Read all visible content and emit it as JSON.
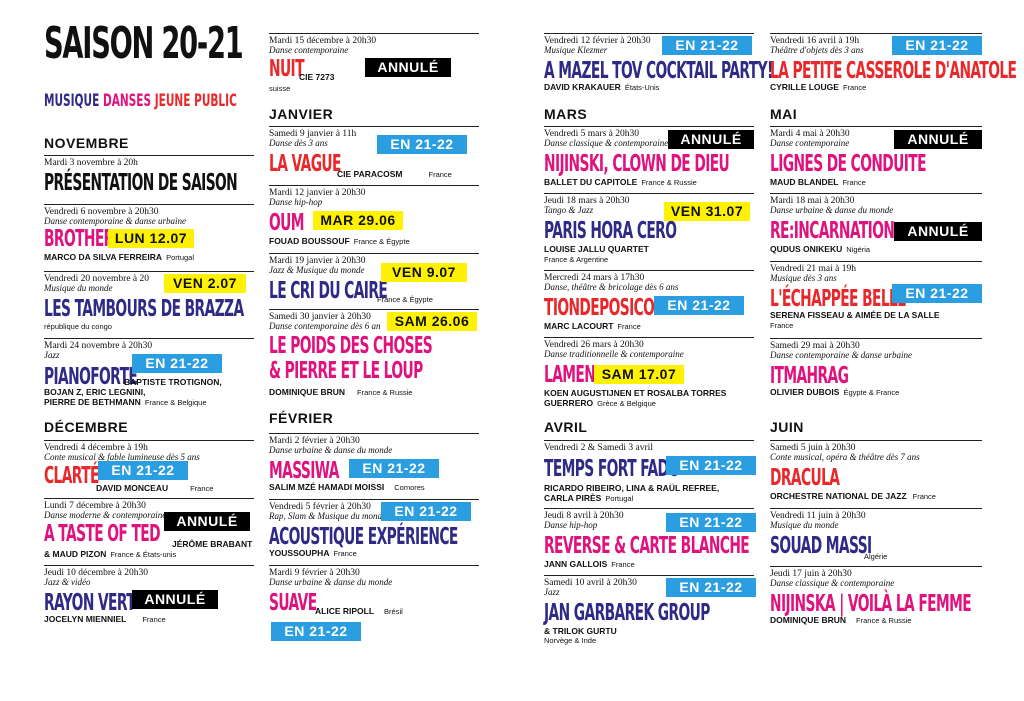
{
  "header": {
    "title": "SAISON 20-21",
    "cat_musique": "MUSIQUE",
    "cat_danses": "DANSES",
    "cat_jeune": "JEUNE PUBLIC"
  },
  "months": {
    "novembre": "NOVEMBRE",
    "decembre": "DÉCEMBRE",
    "janvier": "JANVIER",
    "fevrier": "FÉVRIER",
    "mars": "MARS",
    "avril": "AVRIL",
    "mai": "MAI",
    "juin": "JUIN"
  },
  "events": [
    {
      "date": "Mardi 3 novembre à 20h",
      "genre": "",
      "title": "PRÉSENTATION DE SAISON",
      "title2": "",
      "artist": "",
      "country": "",
      "sub": "",
      "tag": ""
    },
    {
      "date": "Vendredi 6 novembre à 20h30",
      "genre": "Danse contemporaine & danse urbaine",
      "title": "BROTHER",
      "title2": "",
      "artist": "MARCO DA SILVA FERREIRA",
      "country": "Portugal",
      "sub": "",
      "tag": "LUN 12.07"
    },
    {
      "date": "Vendredi 20 novembre à 20",
      "genre": "Musique du monde",
      "title": "LES TAMBOURS DE BRAZZA",
      "title2": "",
      "artist": "",
      "country": "",
      "sub": "république du congo",
      "tag": "VEN 2.07"
    },
    {
      "date": "Mardi 24 novembre à 20h30",
      "genre": "Jazz",
      "title": "PIANOFORTE",
      "title2": "",
      "artist": "BAPTISTE TROTIGNON,",
      "country": "",
      "sub": "",
      "tag": "EN 21-22",
      "artist2": "BOJAN Z, ERIC LEGNINI,",
      "artist3": "PIERRE DE BETHMANN",
      "country3": "France & Belgique"
    },
    {
      "date": "Vendredi 4 décembre à 19h",
      "genre": "Conte musical & fable lumineuse dès 5 ans",
      "title": "CLARTÉ",
      "title2": "",
      "artist": "DAVID MONCEAU",
      "country": "France",
      "sub": "",
      "tag": "EN 21-22"
    },
    {
      "date": "Lundi 7 décembre à 20h30",
      "genre": "Danse moderne & contemporaine",
      "title": "A TASTE OF TED",
      "title2": "",
      "artist": "JÉRÔME BRABANT",
      "country": "",
      "sub": "",
      "tag": "ANNULÉ",
      "artist2": "& MAUD PIZON",
      "country2": "France & États-unis"
    },
    {
      "date": "Jeudi 10 décembre à 20h30",
      "genre": "Jazz & vidéo",
      "title": "RAYON VERT",
      "title2": "",
      "artist": "JOCELYN MIENNIEL",
      "country": "France",
      "sub": "",
      "tag": "ANNULÉ"
    },
    {
      "date": "Mardi 15 décembre à 20h30",
      "genre": "Danse contemporaine",
      "title": "NUIT",
      "title2": "",
      "artist": "CIE 7273",
      "country": "",
      "sub": "suisse",
      "tag": "ANNULÉ"
    },
    {
      "date": "Samedi 9 janvier à 11h",
      "genre": "Danse dès 3 ans",
      "title": "LA VAGUE",
      "title2": "",
      "artist": "CIE PARACOSM",
      "country": "France",
      "sub": "",
      "tag": "EN 21-22"
    },
    {
      "date": "Mardi 12 janvier à 20h30",
      "genre": "Danse hip-hop",
      "title": "OUM",
      "title2": "",
      "artist": "FOUAD BOUSSOUF",
      "country": "France & Égypte",
      "sub": "",
      "tag": "MAR 29.06"
    },
    {
      "date": "Mardi 19 janvier à 20h30",
      "genre": "Jazz & Musique du monde",
      "title": "LE CRI DU CAIRE",
      "title2": "",
      "artist": "",
      "country": "France & Égypte",
      "sub": "",
      "tag": "VEN 9.07"
    },
    {
      "date": "Samedi 30 janvier à 20h30",
      "genre": "Danse contemporaine dès 6 an",
      "title": "LE POIDS DES CHOSES",
      "title2": "& PIERRE ET LE LOUP",
      "artist": "DOMINIQUE BRUN",
      "country": "France & Russie",
      "sub": "",
      "tag": "SAM 26.06"
    },
    {
      "date": "Mardi 2 février à 20h30",
      "genre": "Danse urbaine & danse du monde",
      "title": "MASSIWA",
      "title2": "",
      "artist": "SALIM MZÉ HAMADI MOISSI",
      "country": "Comores",
      "sub": "",
      "tag": "EN 21-22"
    },
    {
      "date": "Vendredi 5 février à 20h30",
      "genre": "Rap, Slam & Musique du monde",
      "title": "ACOUSTIQUE EXPÉRIENCE",
      "title2": "",
      "artist": "YOUSSOUPHA",
      "country": "France",
      "sub": "",
      "tag": "EN 21-22"
    },
    {
      "date": "Mardi 9 février à 20h30",
      "genre": "Danse urbaine & danse du monde",
      "title": "SUAVE",
      "title2": "",
      "artist": "ALICE RIPOLL",
      "country": "Brésil",
      "sub": "",
      "tag": "EN 21-22"
    },
    {
      "date": "Vendredi 12 février à 20h30",
      "genre": "Musique Klezmer",
      "title": "A MAZEL TOV COCKTAIL PARTY!",
      "title2": "",
      "artist": "DAVID KRAKAUER",
      "country": "États-Unis",
      "sub": "",
      "tag": "EN 21-22"
    },
    {
      "date": "Vendredi 5 mars à 20h30",
      "genre": "Danse classique & contemporaine",
      "title": "NIJINSKI, CLOWN DE DIEU",
      "title2": "",
      "artist": "BALLET DU CAPITOLE",
      "country": "France & Russie",
      "sub": "",
      "tag": "ANNULÉ"
    },
    {
      "date": "Jeudi 18 mars à 20h30",
      "genre": "Tango & Jazz",
      "title": "PARIS HORA CERO",
      "title2": "",
      "artist": "LOUISE JALLU QUARTET",
      "country": "",
      "sub": "France & Argentine",
      "tag": "VEN 31.07"
    },
    {
      "date": "Mercredi 24 mars à 17h30",
      "genre": "Danse, théâtre & bricolage dès 6 ans",
      "title": "TIONDEPOSICOM",
      "title2": "",
      "artist": "MARC LACOURT",
      "country": "France",
      "sub": "",
      "tag": "EN 21-22"
    },
    {
      "date": "Vendredi 26 mars à 20h30",
      "genre": "Danse traditionnelle & contemporaine",
      "title": "LAMENTA",
      "title2": "",
      "artist": "KOEN AUGUSTIJNEN ET ROSALBA TORRES",
      "country": "",
      "sub": "",
      "tag": "SAM 17.07",
      "artist2": "GUERRERO",
      "country2": "Grèce & Belgique"
    },
    {
      "date": "Vendredi 2 & Samedi 3 avril",
      "genre": "",
      "title": "TEMPS FORT FADO",
      "title2": "",
      "artist": "RICARDO RIBEIRO, LINA & RAÜL REFREE,",
      "country": "",
      "sub": "",
      "tag": "EN 21-22",
      "artist2": "CARLA PIRÈS",
      "country2": "Portugal"
    },
    {
      "date": "Jeudi 8 avril à 20h30",
      "genre": "Danse hip-hop",
      "title": "REVERSE & CARTE BLANCHE",
      "title2": "",
      "artist": "JANN GALLOIS",
      "country": "France",
      "sub": "",
      "tag": "EN 21-22"
    },
    {
      "date": "Samedi 10 avril à 20h30",
      "genre": "Jazz",
      "title": "JAN GARBAREK GROUP",
      "title2": "",
      "artist": "& TRILOK GURTU",
      "country": "",
      "sub": "Norvège & Inde",
      "tag": "EN 21-22"
    },
    {
      "date": "Vendredi 16 avril à 19h",
      "genre": "Théâtre d'objets dès 3 ans",
      "title": "LA PETITE CASSEROLE D'ANATOLE",
      "title2": "",
      "artist": "CYRILLE LOUGE",
      "country": "France",
      "sub": "",
      "tag": "EN 21-22"
    },
    {
      "date": "Mardi 4 mai à 20h30",
      "genre": "Danse contemporaine",
      "title": "LIGNES DE CONDUITE",
      "title2": "",
      "artist": "MAUD BLANDEL",
      "country": "France",
      "sub": "",
      "tag": "ANNULÉ"
    },
    {
      "date": "Mardi 18 mai à 20h30",
      "genre": "Danse urbaine & danse du monde",
      "title": "RE:INCARNATION",
      "title2": "",
      "artist": "QUDUS ONIKEKU",
      "country": "Nigéria",
      "sub": "",
      "tag": "ANNULÉ"
    },
    {
      "date": "Vendredi 21 mai à 19h",
      "genre": "Musique dès 3 ans",
      "title": "L'ÉCHAPPÉE BELLE",
      "title2": "",
      "artist": "SERENA FISSEAU & AIMÉE DE LA SALLE",
      "country": "",
      "sub": "France",
      "tag": "EN 21-22"
    },
    {
      "date": "Samedi 29 mai à 20h30",
      "genre": "Danse contemporaine & danse urbaine",
      "title": "ITMAHRAG",
      "title2": "",
      "artist": "OLIVIER DUBOIS",
      "country": "Égypte & France",
      "sub": "",
      "tag": ""
    },
    {
      "date": "Samedi 5 juin à 20h30",
      "genre": "Conte musical, opéra & théâtre dès 7 ans",
      "title": "DRACULA",
      "title2": "",
      "artist": "ORCHESTRE NATIONAL DE JAZZ",
      "country": "France",
      "sub": "",
      "tag": ""
    },
    {
      "date": "Vendredi 11 juin à 20h30",
      "genre": "Musique du monde",
      "title": "SOUAD MASSI",
      "title2": "",
      "artist": "",
      "country": "Algérie",
      "sub": "",
      "tag": ""
    },
    {
      "date": "Jeudi 17 juin à 20h30",
      "genre": "Danse classique & contemporaine",
      "title": "NIJINSKA | VOILÀ LA FEMME",
      "title2": "",
      "artist": "DOMINIQUE BRUN",
      "country": "France & Russie",
      "sub": "",
      "tag": ""
    }
  ]
}
